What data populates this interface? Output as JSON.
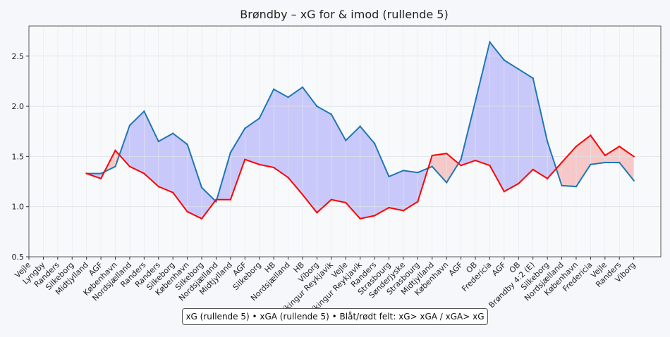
{
  "chart_data": {
    "type": "line",
    "title": "Brøndby – xG for & imod (rullende 5)",
    "xlabel": "",
    "ylabel": "",
    "ylim": [
      0.5,
      2.8
    ],
    "yticks": [
      "0.5",
      "1.0",
      "1.5",
      "2.0",
      "2.5"
    ],
    "grid": true,
    "categories": [
      "Vejle",
      "Lyngby",
      "Randers",
      "Silkeborg",
      "Midtjylland",
      "AGF",
      "København",
      "Nordsjælland",
      "Randers",
      "Randers",
      "Silkeborg",
      "København",
      "Silkeborg",
      "Nordsjælland",
      "Midtjylland",
      "AGF",
      "Silkeborg",
      "HB",
      "Nordsjælland",
      "HB",
      "Viborg",
      "Víkingur Reykjavik",
      "Vejle",
      "Víkingur Reykjavik",
      "Randers",
      "Strasbourg",
      "Sønderjyske",
      "Strasbourg",
      "Midtjylland",
      "København",
      "AGF",
      "OB",
      "Fredericia",
      "AGF",
      "OB",
      "Brøndby 4:2 (E)",
      "Silkeborg",
      "Nordsjælland",
      "København",
      "Fredericia",
      "Vejle",
      "Randers",
      "Viborg"
    ],
    "series": [
      {
        "name": "xG (rullende 5)",
        "color": "#1f77b4",
        "values": [
          null,
          null,
          null,
          null,
          1.33,
          1.33,
          1.4,
          1.81,
          1.95,
          1.65,
          1.73,
          1.62,
          1.19,
          1.05,
          1.54,
          1.78,
          1.88,
          2.17,
          2.09,
          2.19,
          2.0,
          1.92,
          1.66,
          1.8,
          1.63,
          1.3,
          1.36,
          1.34,
          1.4,
          1.24,
          1.47,
          2.05,
          2.64,
          2.46,
          2.37,
          2.28,
          1.65,
          1.21,
          1.2,
          1.42,
          1.44,
          1.44,
          1.26
        ]
      },
      {
        "name": "xGA (rullende 5)",
        "color": "#ff0000",
        "values": [
          null,
          null,
          null,
          null,
          1.33,
          1.28,
          1.56,
          1.4,
          1.33,
          1.2,
          1.14,
          0.95,
          0.88,
          1.07,
          1.07,
          1.47,
          1.42,
          1.39,
          1.29,
          1.12,
          0.94,
          1.07,
          1.04,
          0.88,
          0.91,
          0.99,
          0.96,
          1.05,
          1.51,
          1.53,
          1.41,
          1.46,
          1.41,
          1.15,
          1.23,
          1.37,
          1.28,
          1.44,
          1.6,
          1.71,
          1.51,
          1.6,
          1.5
        ]
      }
    ],
    "fill_colors": {
      "xg_above": "#c8c8fa",
      "xga_above": "#f7c8c8"
    },
    "legend": "xG (rullende 5) • xGA (rullende 5) • Blåt/rødt felt: xG> xGA / xGA> xG",
    "legend_position": "bottom-center"
  }
}
